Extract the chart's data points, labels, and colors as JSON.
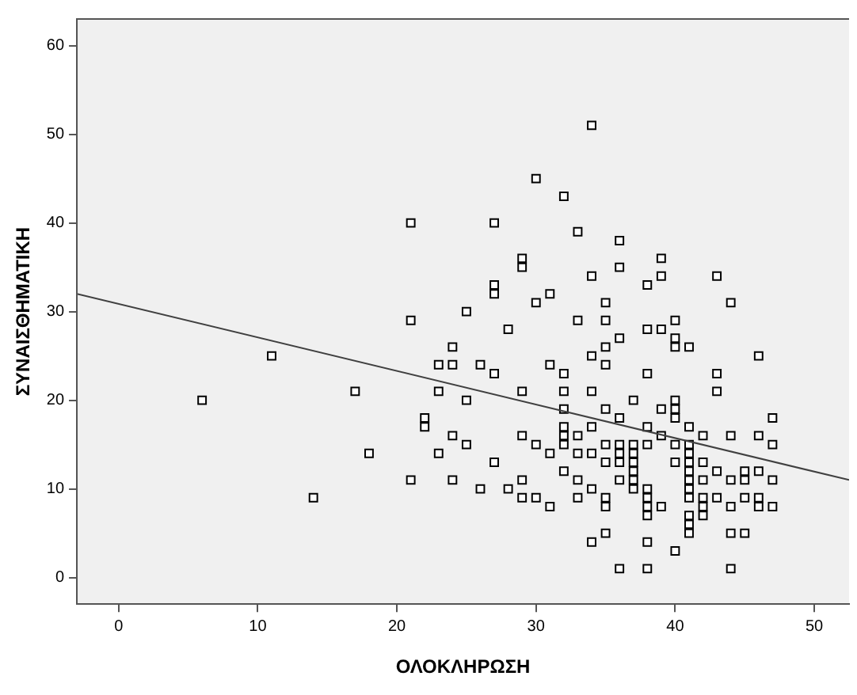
{
  "chart_data": {
    "type": "scatter",
    "xlabel": "ΟΛΟΚΛΗΡΩΣΗ",
    "ylabel": "ΣΥΝΑΙΣΘΗΜΑΤΙΚΗ",
    "xlim": [
      -3,
      52.5
    ],
    "ylim": [
      -3,
      63
    ],
    "xticks": [
      0,
      10,
      20,
      30,
      40,
      50
    ],
    "yticks": [
      0,
      10,
      20,
      30,
      40,
      50,
      60
    ],
    "grid": false,
    "legend": false,
    "series": [
      {
        "marker": "square",
        "color": "#000000",
        "x": [
          6,
          11,
          17,
          14,
          18,
          21,
          21,
          22,
          22,
          23,
          23,
          23,
          24,
          24,
          24,
          24,
          21,
          34,
          30,
          32,
          27,
          33,
          36,
          29,
          29,
          36,
          39,
          34,
          39,
          38,
          43,
          27,
          27,
          31,
          30,
          35,
          44,
          25,
          28,
          33,
          35,
          38,
          39,
          40,
          36,
          40,
          40,
          41,
          35,
          34,
          46,
          26,
          35,
          31,
          27,
          32,
          38,
          43,
          29,
          32,
          34,
          43,
          25,
          37,
          40,
          32,
          35,
          39,
          40,
          36,
          40,
          47,
          32,
          34,
          38,
          41,
          29,
          32,
          33,
          39,
          42,
          44,
          46,
          25,
          30,
          32,
          35,
          36,
          37,
          38,
          40,
          41,
          47,
          31,
          33,
          34,
          36,
          37,
          41,
          27,
          35,
          36,
          37,
          40,
          41,
          42,
          32,
          37,
          41,
          43,
          45,
          46,
          29,
          33,
          36,
          37,
          41,
          42,
          44,
          45,
          47,
          26,
          28,
          34,
          37,
          38,
          41,
          29,
          30,
          33,
          35,
          38,
          41,
          42,
          43,
          45,
          46,
          31,
          35,
          38,
          39,
          42,
          44,
          46,
          47,
          38,
          41,
          42,
          41,
          35,
          41,
          44,
          45,
          34,
          38,
          40,
          36,
          38,
          44
        ],
        "values": [
          20,
          25,
          21,
          9,
          14,
          29,
          11,
          18,
          17,
          24,
          21,
          14,
          26,
          24,
          16,
          11,
          40,
          51,
          45,
          43,
          40,
          39,
          38,
          36,
          35,
          35,
          36,
          34,
          34,
          33,
          34,
          33,
          32,
          32,
          31,
          31,
          31,
          30,
          28,
          29,
          29,
          28,
          28,
          29,
          27,
          27,
          26,
          26,
          26,
          25,
          25,
          24,
          24,
          24,
          23,
          23,
          23,
          23,
          21,
          21,
          21,
          21,
          20,
          20,
          20,
          19,
          19,
          19,
          19,
          18,
          18,
          18,
          17,
          17,
          17,
          17,
          16,
          16,
          16,
          16,
          16,
          16,
          16,
          15,
          15,
          15,
          15,
          15,
          15,
          15,
          15,
          15,
          15,
          14,
          14,
          14,
          14,
          14,
          14,
          13,
          13,
          13,
          13,
          13,
          13,
          13,
          12,
          12,
          12,
          12,
          12,
          12,
          11,
          11,
          11,
          11,
          11,
          11,
          11,
          11,
          11,
          10,
          10,
          10,
          10,
          10,
          10,
          9,
          9,
          9,
          9,
          9,
          9,
          9,
          9,
          9,
          9,
          8,
          8,
          8,
          8,
          8,
          8,
          8,
          8,
          7,
          7,
          7,
          6,
          5,
          5,
          5,
          5,
          4,
          4,
          3,
          1,
          1,
          1
        ]
      },
      {
        "type": "line",
        "color": "#404040",
        "x": [
          -3,
          52.5
        ],
        "values": [
          32,
          11
        ]
      }
    ]
  }
}
